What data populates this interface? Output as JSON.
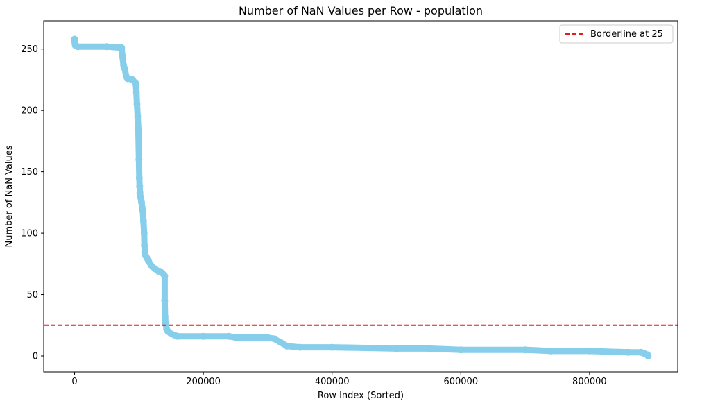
{
  "chart_data": {
    "type": "line",
    "title": "Number of NaN Values per Row - population",
    "xlabel": "Row Index (Sorted)",
    "ylabel": "Number of NaN Values",
    "xlim": [
      -48000,
      937000
    ],
    "ylim": [
      -13,
      273
    ],
    "xticks": [
      0,
      200000,
      400000,
      600000,
      800000
    ],
    "xtick_labels": [
      "0",
      "200000",
      "400000",
      "600000",
      "800000"
    ],
    "yticks": [
      0,
      50,
      100,
      150,
      200,
      250
    ],
    "ytick_labels": [
      "0",
      "50",
      "100",
      "150",
      "200",
      "250"
    ],
    "grid": false,
    "legend_position": "top-right",
    "line_color": "#87CEEB",
    "threshold_color": "#e41a1c",
    "series": [
      {
        "name": "",
        "x": [
          0,
          0,
          1000,
          5000,
          50000,
          73000,
          74000,
          76000,
          78000,
          80000,
          82000,
          90000,
          95000,
          96000,
          97000,
          98000,
          99000,
          100000,
          100500,
          101000,
          101500,
          102000,
          104000,
          106000,
          107000,
          108000,
          108500,
          109000,
          110000,
          112000,
          115000,
          120000,
          125000,
          130000,
          135000,
          139000,
          140000,
          140000,
          140500,
          141500,
          143000,
          145000,
          150000,
          155000,
          160000,
          200000,
          240000,
          250000,
          300000,
          310000,
          320000,
          330000,
          350000,
          400000,
          500000,
          550000,
          600000,
          700000,
          740000,
          800000,
          860000,
          880000,
          885000,
          890000,
          891000
        ],
        "y": [
          258,
          256,
          253,
          252,
          252,
          251,
          245,
          237,
          234,
          228,
          226,
          225,
          222,
          215,
          205,
          195,
          185,
          160,
          145,
          138,
          133,
          130,
          125,
          118,
          110,
          100,
          90,
          85,
          82,
          80,
          77,
          73,
          71,
          69,
          68,
          66,
          65,
          45,
          32,
          26,
          22,
          20,
          18,
          17,
          16,
          16,
          16,
          15,
          15,
          14,
          11,
          8,
          7,
          7,
          6,
          6,
          5,
          5,
          4,
          4,
          3,
          3,
          2,
          1,
          0
        ]
      }
    ],
    "threshold": {
      "value": 25,
      "label": "Borderline at 25"
    }
  }
}
